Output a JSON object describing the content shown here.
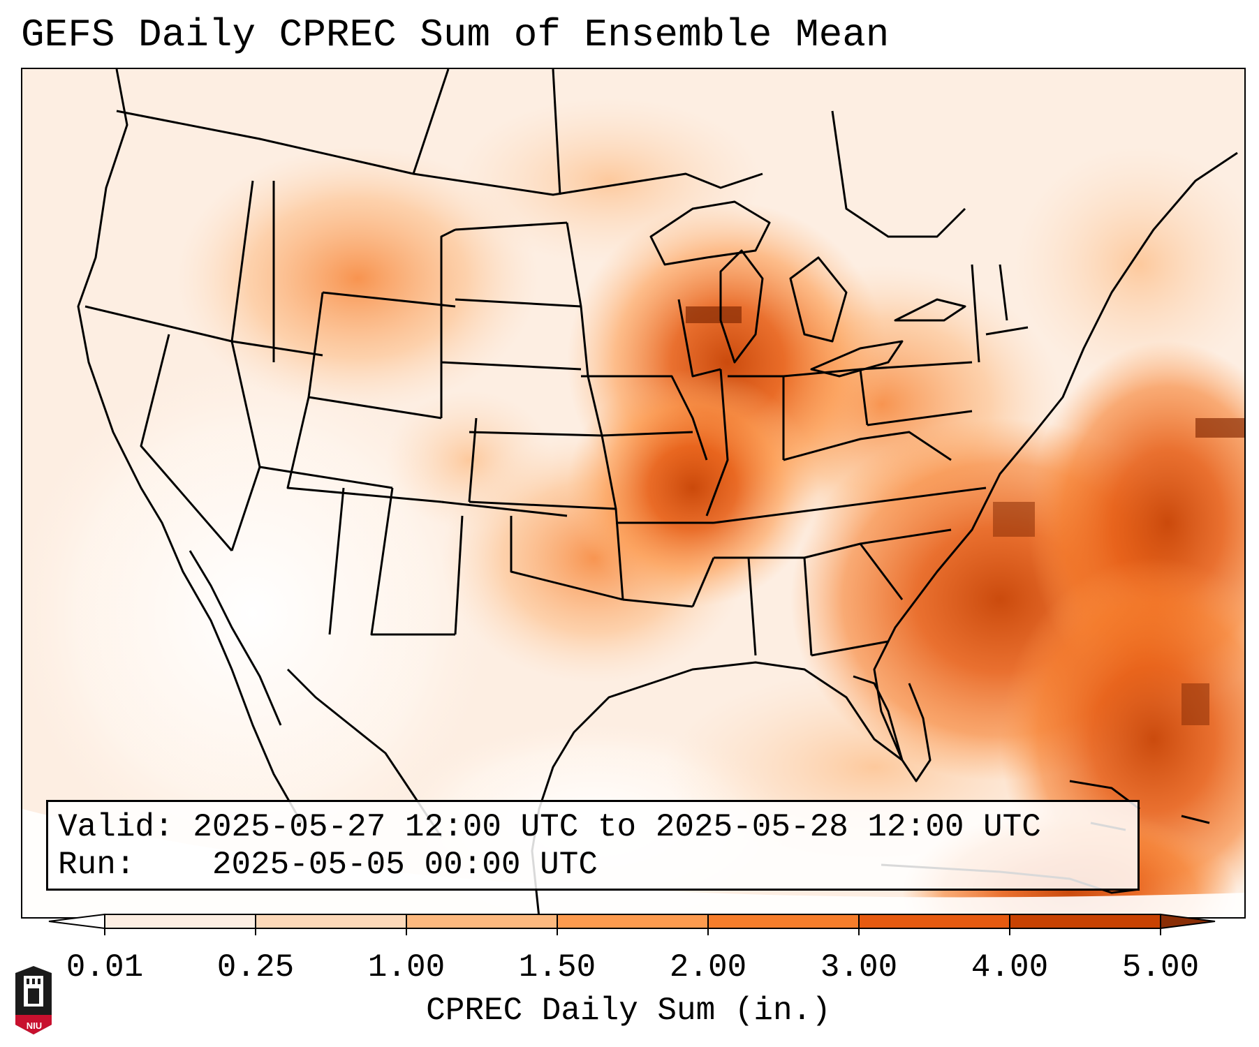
{
  "title": "GEFS Daily CPREC Sum of Ensemble Mean",
  "info": {
    "valid_label": "Valid:",
    "valid_value": "2025-05-27 12:00 UTC to 2025-05-28 12:00 UTC",
    "run_label": "Run:",
    "run_value": "2025-05-05 00:00 UTC"
  },
  "colorbar": {
    "label": "CPREC Daily Sum (in.)",
    "ticks": [
      "0.01",
      "0.25",
      "1.00",
      "1.50",
      "2.00",
      "3.00",
      "4.00",
      "5.00"
    ],
    "colors": [
      "#fdeee2",
      "#fdd9b9",
      "#fdb97f",
      "#fd9b4f",
      "#f67d2b",
      "#e65a10",
      "#c84202"
    ],
    "under_color": "#ffffff",
    "over_color": "#8a2e06"
  },
  "logo": {
    "icon": "niu-tower-logo-icon",
    "text": "NIU",
    "color": "#c8102e"
  },
  "map": {
    "region": "Continental United States",
    "projection": "Lambert conformal",
    "features": [
      "state boundaries",
      "coastlines",
      "Great Lakes",
      "Gulf of Mexico",
      "Caribbean islands"
    ]
  }
}
